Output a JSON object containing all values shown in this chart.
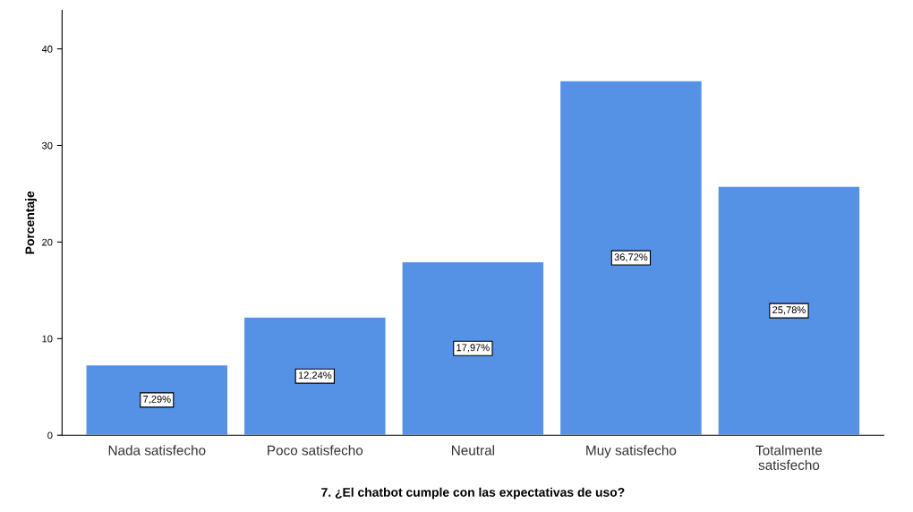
{
  "chart_data": {
    "type": "bar",
    "xlabel": "7. ¿El chatbot cumple con las expectativas de uso?",
    "ylabel": "Porcentaje",
    "categories": [
      "Nada satisfecho",
      "Poco satisfecho",
      "Neutral",
      "Muy satisfecho",
      "Totalmente\nsatisfecho"
    ],
    "values": [
      7.29,
      12.24,
      17.97,
      36.72,
      25.78
    ],
    "value_labels": [
      "7,29%",
      "12,24%",
      "17,97%",
      "36,72%",
      "25,78%"
    ],
    "color": "#5592e6",
    "ylim": [
      0,
      44
    ],
    "yticks": [
      0,
      10,
      20,
      30,
      40
    ],
    "grid": false,
    "legend": false
  }
}
